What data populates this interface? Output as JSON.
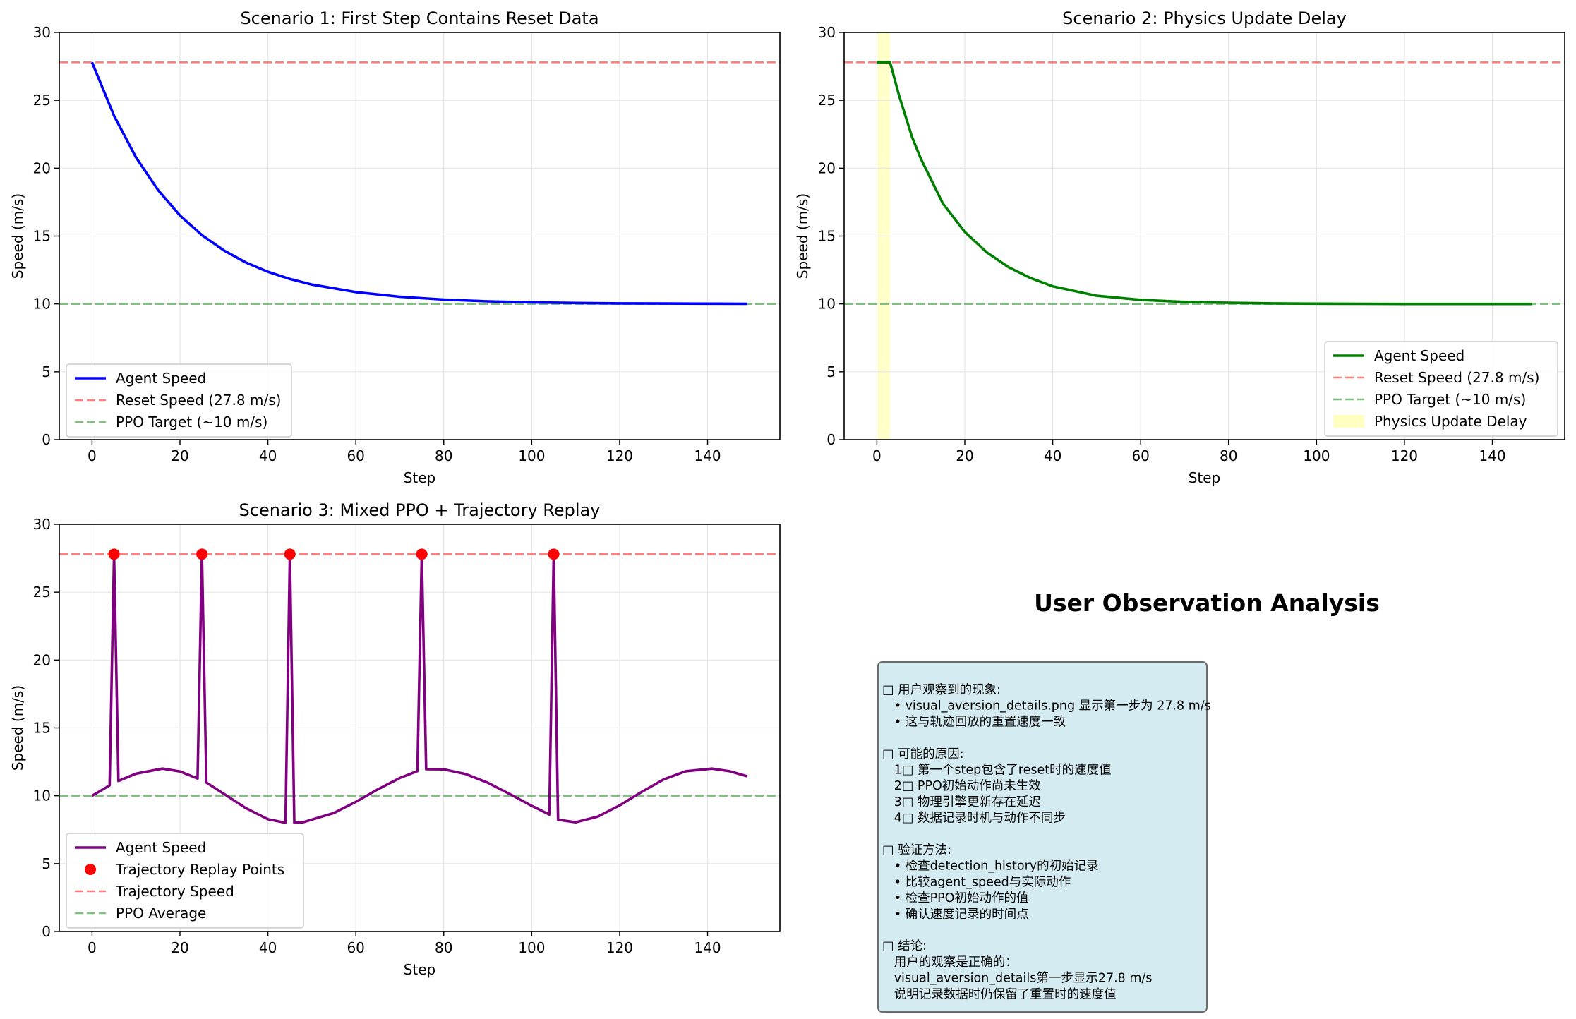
{
  "colors": {
    "blue": "#0000ff",
    "green": "#008000",
    "purple": "#800080",
    "red_dash": "#ff7f7f",
    "green_dash": "#7fbf7f",
    "red_point": "#ff0000",
    "delay_fill": "#ffffc0",
    "analysis_box": "#d4ebf1",
    "grid": "#e6e6e6"
  },
  "chart_data": [
    {
      "type": "line",
      "title": "Scenario 1: First Step Contains Reset Data",
      "xlabel": "Step",
      "ylabel": "Speed (m/s)",
      "xlim": [
        -7.45,
        156.45
      ],
      "ylim": [
        0,
        30
      ],
      "xticks": [
        0,
        20,
        40,
        60,
        80,
        100,
        120,
        140
      ],
      "yticks": [
        0,
        5,
        10,
        15,
        20,
        25,
        30
      ],
      "grid": true,
      "legend_position": "lower-left",
      "x": [
        0,
        5,
        10,
        15,
        20,
        25,
        30,
        35,
        40,
        45,
        50,
        60,
        70,
        80,
        90,
        100,
        110,
        120,
        130,
        140,
        149
      ],
      "series": [
        {
          "name": "Agent Speed",
          "color": "blue",
          "style": "solid",
          "values": [
            27.8,
            23.86,
            20.79,
            18.39,
            16.52,
            15.07,
            13.94,
            13.05,
            12.37,
            11.84,
            11.43,
            10.87,
            10.53,
            10.32,
            10.19,
            10.12,
            10.07,
            10.04,
            10.03,
            10.02,
            10.01
          ]
        }
      ],
      "hlines": [
        {
          "name": "Reset Speed (27.8 m/s)",
          "y": 27.8,
          "color": "red_dash",
          "style": "dashed"
        },
        {
          "name": "PPO Target (~10 m/s)",
          "y": 10,
          "color": "green_dash",
          "style": "dashed"
        }
      ]
    },
    {
      "type": "line",
      "title": "Scenario 2: Physics Update Delay",
      "xlabel": "Step",
      "ylabel": "Speed (m/s)",
      "xlim": [
        -7.45,
        156.45
      ],
      "ylim": [
        0,
        30
      ],
      "xticks": [
        0,
        20,
        40,
        60,
        80,
        100,
        120,
        140
      ],
      "yticks": [
        0,
        5,
        10,
        15,
        20,
        25,
        30
      ],
      "grid": true,
      "legend_position": "lower-right",
      "x": [
        0,
        1,
        2,
        3,
        5,
        8,
        10,
        15,
        20,
        25,
        30,
        35,
        40,
        50,
        60,
        70,
        80,
        90,
        100,
        110,
        120,
        130,
        140,
        149
      ],
      "series": [
        {
          "name": "Agent Speed",
          "color": "green",
          "style": "solid",
          "values": [
            27.8,
            27.8,
            27.8,
            27.8,
            25.4,
            22.3,
            20.7,
            17.4,
            15.3,
            13.8,
            12.7,
            11.9,
            11.3,
            10.6,
            10.3,
            10.15,
            10.08,
            10.04,
            10.02,
            10.01,
            10.0,
            10.0,
            10.0,
            10.0
          ]
        }
      ],
      "hlines": [
        {
          "name": "Reset Speed (27.8 m/s)",
          "y": 27.8,
          "color": "red_dash",
          "style": "dashed"
        },
        {
          "name": "PPO Target (~10 m/s)",
          "y": 10,
          "color": "green_dash",
          "style": "dashed"
        }
      ],
      "spans": [
        {
          "name": "Physics Update Delay",
          "x0": 0,
          "x1": 3,
          "color": "delay_fill"
        }
      ]
    },
    {
      "type": "line",
      "title": "Scenario 3: Mixed PPO + Trajectory Replay",
      "xlabel": "Step",
      "ylabel": "Speed (m/s)",
      "xlim": [
        -7.45,
        156.45
      ],
      "ylim": [
        0,
        30
      ],
      "xticks": [
        0,
        20,
        40,
        60,
        80,
        100,
        120,
        140
      ],
      "yticks": [
        0,
        5,
        10,
        15,
        20,
        25,
        30
      ],
      "grid": true,
      "legend_position": "lower-left",
      "x": [
        0,
        4,
        5,
        6,
        10,
        16,
        20,
        24,
        25,
        26,
        30,
        35,
        40,
        44,
        45,
        46,
        48,
        55,
        60,
        65,
        70,
        74,
        75,
        76,
        80,
        85,
        90,
        95,
        100,
        104,
        105,
        106,
        110,
        115,
        120,
        125,
        130,
        135,
        141,
        145,
        149
      ],
      "series": [
        {
          "name": "Agent Speed",
          "color": "purple",
          "style": "solid",
          "values": [
            10.0,
            10.76,
            27.8,
            11.09,
            11.63,
            12.0,
            11.79,
            11.27,
            27.8,
            10.97,
            10.14,
            9.09,
            8.27,
            8.01,
            27.8,
            8.0,
            8.05,
            8.73,
            9.55,
            10.47,
            11.31,
            11.82,
            27.8,
            11.96,
            11.95,
            11.6,
            10.96,
            10.13,
            9.26,
            8.62,
            27.8,
            8.23,
            8.05,
            8.46,
            9.29,
            10.28,
            11.2,
            11.81,
            12.0,
            11.81,
            11.44
          ]
        },
        {
          "name": "Trajectory Replay Points",
          "color": "red_point",
          "style": "markers",
          "x": [
            5,
            25,
            45,
            75,
            105
          ],
          "values": [
            27.8,
            27.8,
            27.8,
            27.8,
            27.8
          ]
        }
      ],
      "hlines": [
        {
          "name": "Trajectory Speed",
          "y": 27.8,
          "color": "red_dash",
          "style": "dashed"
        },
        {
          "name": "PPO Average",
          "y": 10,
          "color": "green_dash",
          "style": "dashed"
        }
      ]
    }
  ],
  "analysis": {
    "title": "User Observation Analysis",
    "lines": [
      "□ 用户观察到的现象:",
      "   • visual_aversion_details.png 显示第一步为 27.8 m/s",
      "   • 这与轨迹回放的重置速度一致",
      "",
      "□ 可能的原因:",
      "   1□ 第一个step包含了reset时的速度值",
      "   2□ PPO初始动作尚未生效",
      "   3□ 物理引擎更新存在延迟",
      "   4□ 数据记录时机与动作不同步",
      "",
      "□ 验证方法:",
      "   • 检查detection_history的初始记录",
      "   • 比较agent_speed与实际动作",
      "   • 检查PPO初始动作的值",
      "   • 确认速度记录的时间点",
      "",
      "□ 结论:",
      "   用户的观察是正确的：",
      "   visual_aversion_details第一步显示27.8 m/s",
      "   说明记录数据时仍保留了重置时的速度值"
    ]
  }
}
